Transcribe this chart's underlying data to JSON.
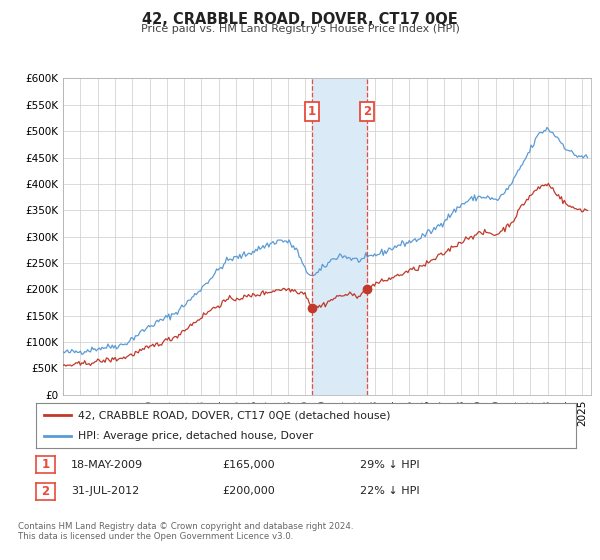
{
  "title": "42, CRABBLE ROAD, DOVER, CT17 0QE",
  "subtitle": "Price paid vs. HM Land Registry's House Price Index (HPI)",
  "ylim": [
    0,
    600000
  ],
  "yticks": [
    0,
    50000,
    100000,
    150000,
    200000,
    250000,
    300000,
    350000,
    400000,
    450000,
    500000,
    550000,
    600000
  ],
  "ytick_labels": [
    "£0",
    "£50K",
    "£100K",
    "£150K",
    "£200K",
    "£250K",
    "£300K",
    "£350K",
    "£400K",
    "£450K",
    "£500K",
    "£550K",
    "£600K"
  ],
  "xlim_start": 1995.0,
  "xlim_end": 2025.5,
  "hpi_color": "#5b9bd5",
  "price_color": "#c0392b",
  "sale1_date": 2009.38,
  "sale1_price": 165000,
  "sale2_date": 2012.58,
  "sale2_price": 200000,
  "vline_color": "#e74c3c",
  "shade_color": "#daeaf7",
  "legend_label1": "42, CRABBLE ROAD, DOVER, CT17 0QE (detached house)",
  "legend_label2": "HPI: Average price, detached house, Dover",
  "annotation1_date": "18-MAY-2009",
  "annotation1_price": "£165,000",
  "annotation1_hpi": "29% ↓ HPI",
  "annotation2_date": "31-JUL-2012",
  "annotation2_price": "£200,000",
  "annotation2_hpi": "22% ↓ HPI",
  "footer1": "Contains HM Land Registry data © Crown copyright and database right 2024.",
  "footer2": "This data is licensed under the Open Government Licence v3.0.",
  "background_color": "#ffffff",
  "grid_color": "#cccccc"
}
